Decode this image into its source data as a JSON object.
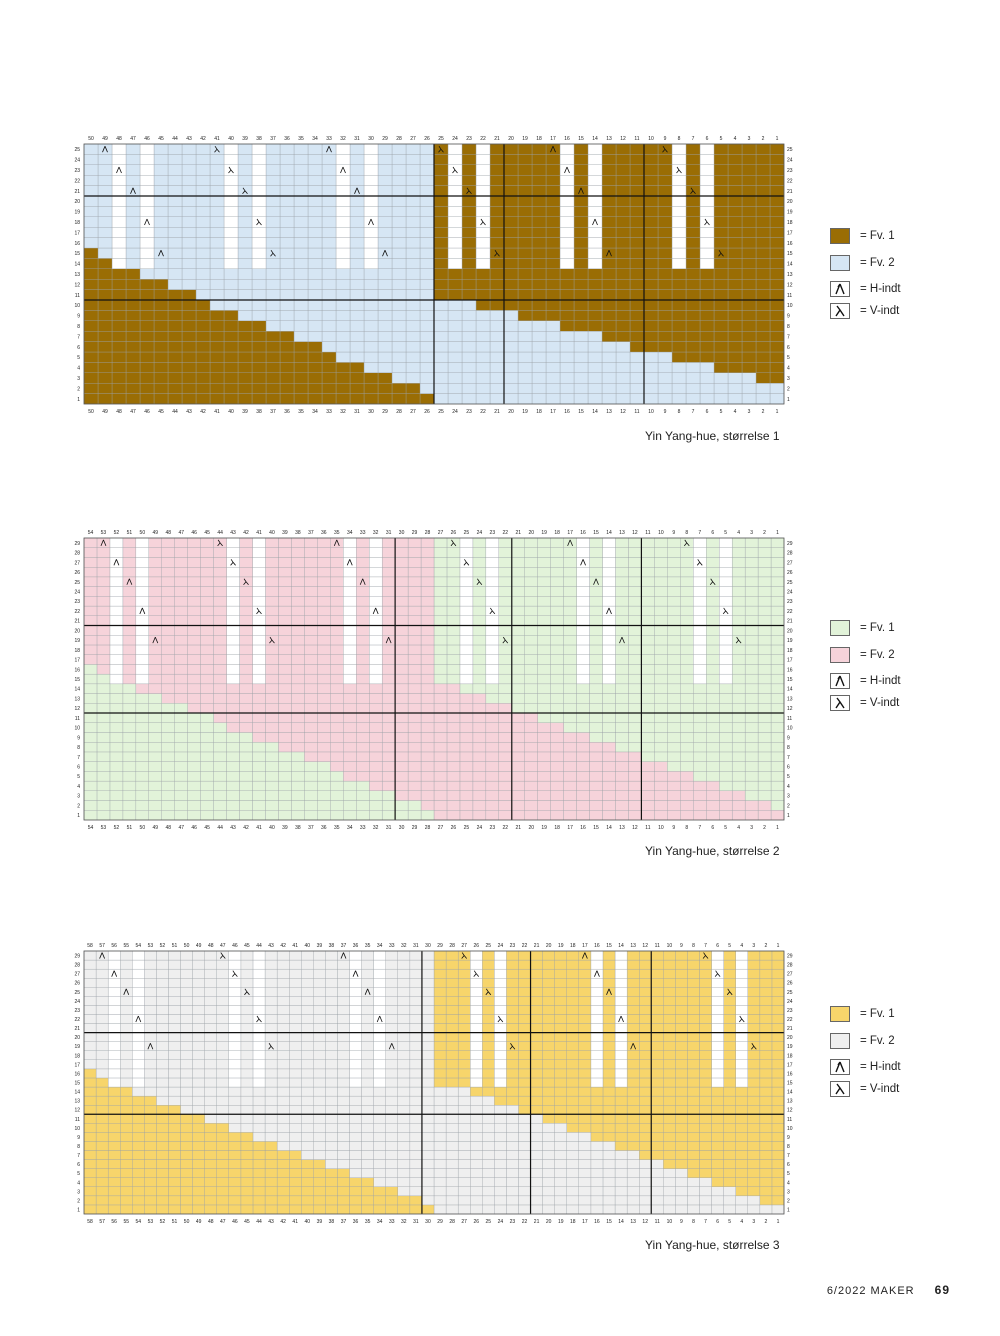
{
  "charts": [
    {
      "caption": "Yin Yang-hue, størrelse 1",
      "cols": 50,
      "rows": 25,
      "colors": {
        "fv1": "#9a6d04",
        "fv2": "#d6e6f4"
      },
      "legend": [
        {
          "key": "fv1",
          "label": "= Fv. 1"
        },
        {
          "key": "fv2",
          "label": "= Fv. 2"
        },
        {
          "key": "hindt",
          "label": "= H-indt"
        },
        {
          "key": "vindt",
          "label": "= V-indt"
        }
      ]
    },
    {
      "caption": "Yin Yang-hue, størrelse 2",
      "cols": 54,
      "rows": 29,
      "colors": {
        "fv1": "#e2f3d9",
        "fv2": "#f6d3da"
      },
      "legend": [
        {
          "key": "fv1",
          "label": "= Fv. 1"
        },
        {
          "key": "fv2",
          "label": "= Fv. 2"
        },
        {
          "key": "hindt",
          "label": "= H-indt"
        },
        {
          "key": "vindt",
          "label": "= V-indt"
        }
      ]
    },
    {
      "caption": "Yin Yang-hue, størrelse  3",
      "cols": 58,
      "rows": 29,
      "colors": {
        "fv1": "#f7d56b",
        "fv2": "#efefef"
      },
      "legend": [
        {
          "key": "fv1",
          "label": "= Fv. 1"
        },
        {
          "key": "fv2",
          "label": "= Fv. 2"
        },
        {
          "key": "hindt",
          "label": "= H-indt"
        },
        {
          "key": "vindt",
          "label": "= V-indt"
        }
      ]
    }
  ],
  "footer": {
    "issue": "6/2022  MAKER",
    "page": "69"
  }
}
